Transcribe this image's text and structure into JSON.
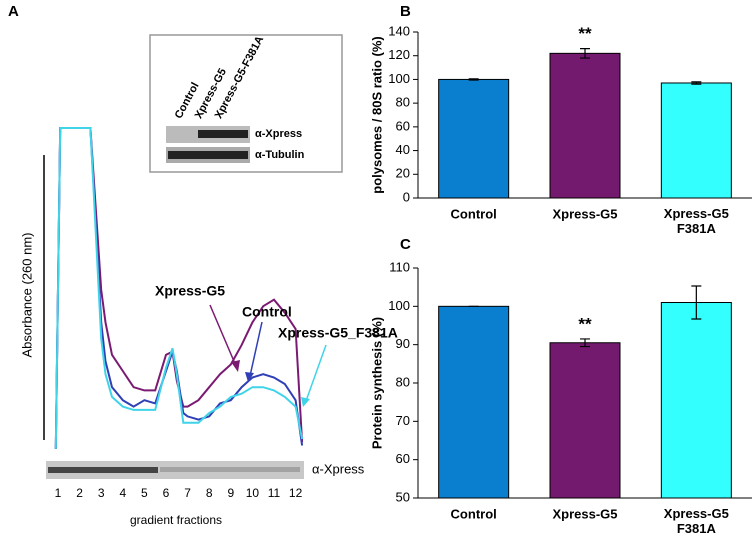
{
  "chart_data": [
    {
      "type": "line",
      "panel": "A",
      "y_label": "Absorbance (260 nm)",
      "x_label": "gradient fractions",
      "blot_label": "α-Xpress",
      "x": [
        0.9,
        1.1,
        1.5,
        2,
        2.5,
        3,
        3.2,
        3.5,
        4,
        4.5,
        5,
        5.5,
        6,
        6.3,
        6.5,
        6.8,
        7,
        7.5,
        8,
        8.5,
        9,
        9.5,
        10,
        10.5,
        11,
        11.5,
        12,
        12.3
      ],
      "xlim": [
        0.6,
        12.6
      ],
      "xticks": [
        1,
        2,
        3,
        4,
        5,
        6,
        7,
        8,
        9,
        10,
        11,
        12
      ],
      "ylim": [
        0,
        100
      ],
      "series": [
        {
          "name": "Xpress-G5",
          "color": "#7b1a73",
          "values": [
            1,
            100,
            100,
            100,
            100,
            50,
            40,
            30,
            25,
            20,
            19,
            19,
            30,
            31,
            22,
            14,
            14,
            16,
            20,
            24,
            27,
            33,
            40,
            45,
            47,
            43,
            38,
            3
          ]
        },
        {
          "name": "Control",
          "color": "#2f3fb5",
          "values": [
            1,
            100,
            100,
            100,
            100,
            40,
            28,
            20,
            16,
            14,
            16,
            15,
            25,
            31,
            25,
            12,
            11,
            10,
            11,
            15,
            16,
            20,
            23,
            24,
            23,
            21,
            16,
            2
          ]
        },
        {
          "name": "Xpress-G5_F381A",
          "color": "#3fd4e8",
          "values": [
            1,
            100,
            100,
            100,
            100,
            35,
            24,
            17,
            14,
            13,
            13,
            13,
            26,
            32,
            24,
            9,
            9,
            9,
            12,
            14,
            17,
            18,
            20,
            20,
            19,
            17,
            14,
            4
          ]
        }
      ],
      "inset": {
        "columns": [
          "Control",
          "Xpress-G5",
          "Xpress-G5-F381A"
        ],
        "rows": [
          "α-Xpress",
          "α-Tubulin"
        ]
      }
    },
    {
      "type": "bar",
      "panel": "B",
      "y_label": "polysomes / 80S ratio (%)",
      "categories": [
        "Control",
        "Xpress-G5",
        "Xpress-G5\nF381A"
      ],
      "values": [
        100,
        122,
        97
      ],
      "errors": [
        0.5,
        4,
        1
      ],
      "colors": [
        "#0a7fcf",
        "#741a6e",
        "#33ffff"
      ],
      "annotations": [
        null,
        "**",
        null
      ],
      "ylim": [
        0,
        140
      ],
      "yticks": [
        0,
        20,
        40,
        60,
        80,
        100,
        120,
        140
      ]
    },
    {
      "type": "bar",
      "panel": "C",
      "y_label": "Protein synthesis (%)",
      "categories": [
        "Control",
        "Xpress-G5",
        "Xpress-G5\nF381A"
      ],
      "values": [
        100,
        90.5,
        101
      ],
      "errors": [
        0,
        1,
        4.3
      ],
      "colors": [
        "#0a7fcf",
        "#741a6e",
        "#33ffff"
      ],
      "annotations": [
        null,
        "**",
        null
      ],
      "ylim": [
        50,
        110
      ],
      "yticks": [
        50,
        60,
        70,
        80,
        90,
        100,
        110
      ]
    }
  ]
}
